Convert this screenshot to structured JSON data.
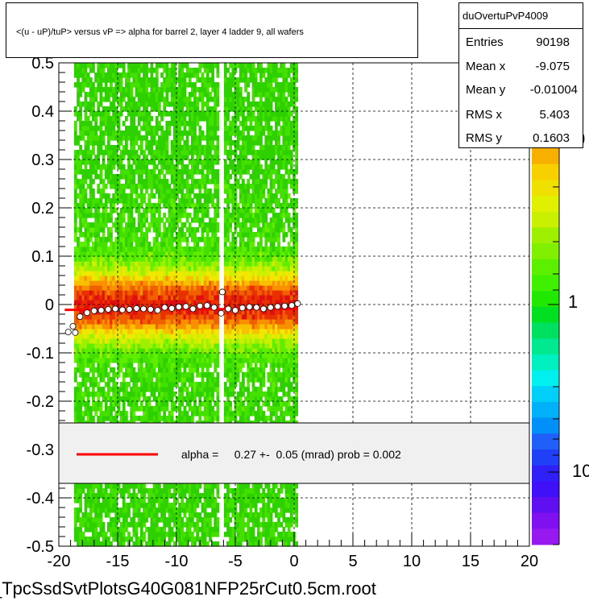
{
  "title": "<(u - uP)/tuP> versus   vP => alpha for barrel 2, layer 4 ladder 9, all wafers",
  "footer": "_TpcSsdSvtPlotsG40G081NFP25rCut0.5cm.root",
  "stats": {
    "name": "duOvertuPvP4009",
    "rows": [
      {
        "label": "Entries",
        "value": "90198"
      },
      {
        "label": "Mean x",
        "value": "-9.075"
      },
      {
        "label": "Mean y",
        "value": "-0.01004"
      },
      {
        "label": "RMS x",
        "value": "5.403"
      },
      {
        "label": "RMS y",
        "value": "0.1603"
      }
    ]
  },
  "chart_data": {
    "type": "heatmap",
    "xlim": [
      -20,
      20
    ],
    "ylim": [
      -0.5,
      0.5
    ],
    "x_ticks": [
      -20,
      -15,
      -10,
      -5,
      0,
      5,
      10,
      15,
      20
    ],
    "y_ticks": [
      -0.5,
      -0.4,
      -0.3,
      -0.2,
      -0.1,
      0,
      0.1,
      0.2,
      0.3,
      0.4,
      0.5
    ],
    "x_tick_labels": [
      "-20",
      "-15",
      "-10",
      "-5",
      "0",
      "5",
      "10",
      "15",
      "20"
    ],
    "y_tick_labels": [
      "-0.5",
      "-0.4",
      "-0.3",
      "-0.2",
      "-0.1",
      "0",
      "0.1",
      "0.2",
      "0.3",
      "0.4",
      "0.5"
    ],
    "grid": true,
    "log_z": true,
    "z_tick_labels": [
      "10",
      "1",
      "10"
    ],
    "filled_x_range": [
      -18.7,
      0.3
    ],
    "gap_x_ranges": [
      [
        -6.3,
        -6.0
      ]
    ],
    "profile_points": [
      {
        "x": -19.2,
        "y": -0.057
      },
      {
        "x": -18.8,
        "y": -0.045
      },
      {
        "x": -18.6,
        "y": -0.058
      },
      {
        "x": -18.2,
        "y": -0.025
      },
      {
        "x": -17.6,
        "y": -0.017
      },
      {
        "x": -17.0,
        "y": -0.013
      },
      {
        "x": -16.4,
        "y": -0.012
      },
      {
        "x": -15.8,
        "y": -0.01
      },
      {
        "x": -15.2,
        "y": -0.009
      },
      {
        "x": -14.6,
        "y": -0.011
      },
      {
        "x": -14.0,
        "y": -0.01
      },
      {
        "x": -13.4,
        "y": -0.008
      },
      {
        "x": -12.8,
        "y": -0.009
      },
      {
        "x": -12.2,
        "y": -0.01
      },
      {
        "x": -11.6,
        "y": -0.012
      },
      {
        "x": -11.0,
        "y": -0.006
      },
      {
        "x": -10.4,
        "y": -0.008
      },
      {
        "x": -9.8,
        "y": -0.005
      },
      {
        "x": -9.2,
        "y": -0.004
      },
      {
        "x": -8.6,
        "y": -0.009
      },
      {
        "x": -8.0,
        "y": -0.003
      },
      {
        "x": -7.4,
        "y": -0.002
      },
      {
        "x": -6.8,
        "y": -0.006
      },
      {
        "x": -6.2,
        "y": -0.018
      },
      {
        "x": -6.1,
        "y": 0.026
      },
      {
        "x": -5.6,
        "y": -0.009
      },
      {
        "x": -5.0,
        "y": -0.012
      },
      {
        "x": -4.4,
        "y": -0.007
      },
      {
        "x": -3.8,
        "y": -0.005
      },
      {
        "x": -3.2,
        "y": -0.006
      },
      {
        "x": -2.6,
        "y": -0.009
      },
      {
        "x": -2.0,
        "y": -0.006
      },
      {
        "x": -1.4,
        "y": -0.004
      },
      {
        "x": -0.8,
        "y": -0.003
      },
      {
        "x": -0.2,
        "y": -0.002
      },
      {
        "x": 0.3,
        "y": 0.002
      }
    ],
    "fit_line": {
      "x": [
        -19.5,
        0.3
      ],
      "y": [
        -0.011,
        -0.009
      ],
      "color": "#ff0000"
    },
    "legend": {
      "text": "alpha =     0.27 +-  0.05 (mrad) prob = 0.002",
      "placement": "lower-middle"
    }
  }
}
